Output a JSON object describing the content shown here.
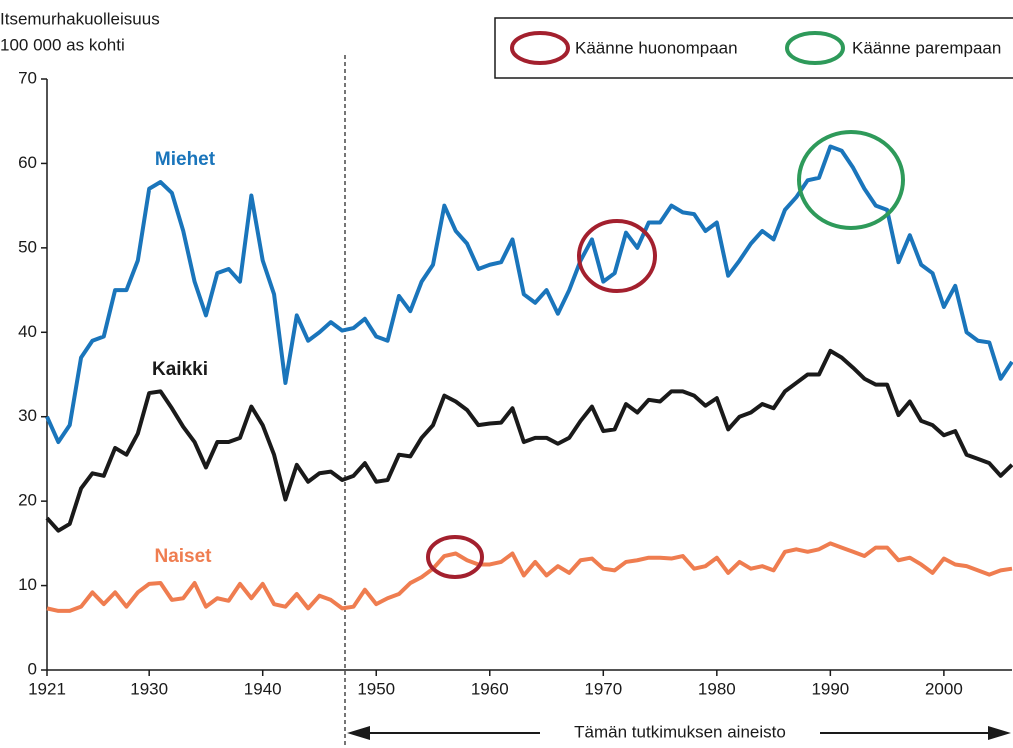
{
  "chart_data": {
    "type": "line",
    "y_label": [
      "Itsemurhakuolleisuus",
      "100 000 as kohti"
    ],
    "legend": [
      "Käänne huonompaan",
      "Käänne parempaan"
    ],
    "legend_colors": [
      "#a3202e",
      "#2e9a5a"
    ],
    "range_label": "Tämän tutkimuksen aineisto",
    "x": [
      1921,
      1922,
      1923,
      1924,
      1925,
      1926,
      1927,
      1928,
      1929,
      1930,
      1931,
      1932,
      1933,
      1934,
      1935,
      1936,
      1937,
      1938,
      1939,
      1940,
      1941,
      1942,
      1943,
      1944,
      1945,
      1946,
      1947,
      1948,
      1949,
      1950,
      1951,
      1952,
      1953,
      1954,
      1955,
      1956,
      1957,
      1958,
      1959,
      1960,
      1961,
      1962,
      1963,
      1964,
      1965,
      1966,
      1967,
      1968,
      1969,
      1970,
      1971,
      1972,
      1973,
      1974,
      1975,
      1976,
      1977,
      1978,
      1979,
      1980,
      1981,
      1982,
      1983,
      1984,
      1985,
      1986,
      1987,
      1988,
      1989,
      1990,
      1991,
      1992,
      1993,
      1994,
      1995,
      1996,
      1997,
      1998,
      1999,
      2000,
      2001,
      2002,
      2003,
      2004,
      2005,
      2006
    ],
    "series": [
      {
        "name": "Miehet",
        "color": "#1a75bb",
        "values": [
          30,
          27,
          29,
          37,
          39,
          39.5,
          45,
          45,
          48.5,
          57,
          57.8,
          56.5,
          52,
          46,
          42,
          47,
          47.5,
          46,
          56.2,
          48.5,
          44.5,
          34,
          42,
          39,
          40,
          41.2,
          40.2,
          40.5,
          41.6,
          39.5,
          39,
          44.3,
          42.5,
          46,
          48,
          55,
          52,
          50.5,
          47.5,
          48,
          48.3,
          51,
          44.5,
          43.5,
          45,
          42.2,
          45,
          48.5,
          51,
          46,
          47,
          51.8,
          50,
          53,
          53,
          55,
          54.2,
          54,
          52,
          53,
          46.7,
          48.5,
          50.5,
          52,
          51,
          54.5,
          56,
          58,
          58.3,
          62,
          61.5,
          59.5,
          57,
          55,
          54.5,
          48.3,
          51.5,
          48,
          47,
          43,
          45.5,
          40,
          39,
          38.8,
          34.5,
          36.5
        ]
      },
      {
        "name": "Kaikki",
        "color": "#1a1a1a",
        "values": [
          18,
          16.5,
          17.3,
          21.5,
          23.3,
          23,
          26.3,
          25.5,
          28,
          32.8,
          33,
          31,
          28.8,
          27,
          24,
          27,
          27,
          27.5,
          31.2,
          29,
          25.5,
          20.2,
          24.3,
          22.3,
          23.3,
          23.5,
          22.5,
          23,
          24.5,
          22.3,
          22.5,
          25.5,
          25.3,
          27.5,
          29,
          32.5,
          31.8,
          30.8,
          29,
          29.2,
          29.3,
          31,
          27,
          27.5,
          27.5,
          26.8,
          27.5,
          29.5,
          31.2,
          28.3,
          28.5,
          31.5,
          30.5,
          32,
          31.8,
          33,
          33,
          32.5,
          31.3,
          32.2,
          28.5,
          30,
          30.5,
          31.5,
          31,
          33,
          34,
          35,
          35,
          37.8,
          37,
          35.8,
          34.5,
          33.8,
          33.8,
          30.2,
          31.8,
          29.5,
          29,
          27.8,
          28.3,
          25.5,
          25,
          24.5,
          23,
          24.3
        ]
      },
      {
        "name": "Naiset",
        "color": "#ef7d50",
        "values": [
          7.3,
          7,
          7,
          7.5,
          9.2,
          7.8,
          9.2,
          7.5,
          9.2,
          10.2,
          10.3,
          8.3,
          8.5,
          10.3,
          7.5,
          8.5,
          8.2,
          10.2,
          8.5,
          10.2,
          7.8,
          7.5,
          9,
          7.3,
          8.8,
          8.3,
          7.3,
          7.5,
          9.5,
          7.8,
          8.5,
          9,
          10.3,
          11,
          12,
          13.5,
          13.8,
          13,
          12.5,
          12.5,
          12.8,
          13.8,
          11.2,
          12.8,
          11.2,
          12.3,
          11.5,
          13,
          13.2,
          12,
          11.8,
          12.8,
          13,
          13.3,
          13.3,
          13.2,
          13.5,
          12,
          12.3,
          13.3,
          11.5,
          12.8,
          12,
          12.3,
          11.8,
          14,
          14.3,
          14,
          14.3,
          15,
          14.5,
          14,
          13.5,
          14.5,
          14.5,
          13,
          13.3,
          12.5,
          11.5,
          13.2,
          12.5,
          12.3,
          11.8,
          11.3,
          11.8,
          12
        ]
      }
    ],
    "xlim": [
      1921,
      2006
    ],
    "xticks": [
      1921,
      1930,
      1940,
      1950,
      1960,
      1970,
      1980,
      1990,
      2000
    ],
    "ylim": [
      0,
      70
    ],
    "yticks": [
      0,
      10,
      20,
      30,
      40,
      50,
      60,
      70
    ]
  }
}
